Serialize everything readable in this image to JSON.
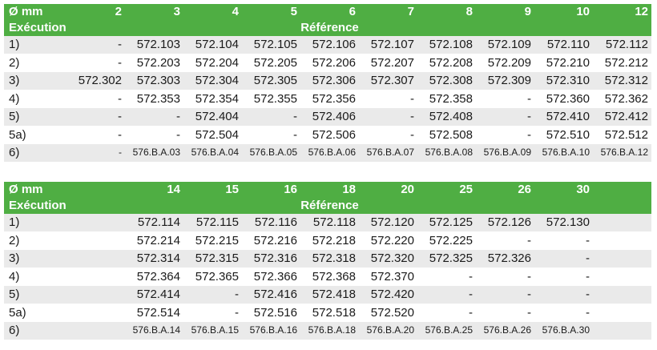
{
  "tables": [
    {
      "diam_label": "Ø mm",
      "exec_label": "Exécution",
      "ref_label": "Référence",
      "diameters": [
        "2",
        "3",
        "4",
        "5",
        "6",
        "7",
        "8",
        "9",
        "10",
        "12"
      ],
      "rows": [
        {
          "label": "1)",
          "cells": [
            "-",
            "572.103",
            "572.104",
            "572.105",
            "572.106",
            "572.107",
            "572.108",
            "572.109",
            "572.110",
            "572.112"
          ]
        },
        {
          "label": "2)",
          "cells": [
            "-",
            "572.203",
            "572.204",
            "572.205",
            "572.206",
            "572.207",
            "572.208",
            "572.209",
            "572.210",
            "572.212"
          ]
        },
        {
          "label": "3)",
          "cells": [
            "572.302",
            "572.303",
            "572.304",
            "572.305",
            "572.306",
            "572.307",
            "572.308",
            "572.309",
            "572.310",
            "572.312"
          ]
        },
        {
          "label": "4)",
          "cells": [
            "-",
            "572.353",
            "572.354",
            "572.355",
            "572.356",
            "-",
            "572.358",
            "-",
            "572.360",
            "572.362"
          ]
        },
        {
          "label": "5)",
          "cells": [
            "-",
            "-",
            "572.404",
            "-",
            "572.406",
            "-",
            "572.408",
            "-",
            "572.410",
            "572.412"
          ]
        },
        {
          "label": "5a)",
          "cells": [
            "-",
            "-",
            "572.504",
            "-",
            "572.506",
            "-",
            "572.508",
            "-",
            "572.510",
            "572.512"
          ]
        },
        {
          "label": "6)",
          "small": true,
          "cells": [
            "-",
            "576.B.A.03",
            "576.B.A.04",
            "576.B.A.05",
            "576.B.A.06",
            "576.B.A.07",
            "576.B.A.08",
            "576.B.A.09",
            "576.B.A.10",
            "576.B.A.12"
          ]
        }
      ]
    },
    {
      "diam_label": "Ø mm",
      "exec_label": "Exécution",
      "ref_label": "Référence",
      "diameters": [
        "",
        "14",
        "15",
        "16",
        "18",
        "20",
        "25",
        "26",
        "30",
        ""
      ],
      "rows": [
        {
          "label": "1)",
          "cells": [
            "",
            "572.114",
            "572.115",
            "572.116",
            "572.118",
            "572.120",
            "572.125",
            "572.126",
            "572.130",
            ""
          ]
        },
        {
          "label": "2)",
          "cells": [
            "",
            "572.214",
            "572.215",
            "572.216",
            "572.218",
            "572.220",
            "572.225",
            "-",
            "-",
            ""
          ]
        },
        {
          "label": "3)",
          "cells": [
            "",
            "572.314",
            "572.315",
            "572.316",
            "572.318",
            "572.320",
            "572.325",
            "572.326",
            "-",
            ""
          ]
        },
        {
          "label": "4)",
          "cells": [
            "",
            "572.364",
            "572.365",
            "572.366",
            "572.368",
            "572.370",
            "-",
            "-",
            "-",
            ""
          ]
        },
        {
          "label": "5)",
          "cells": [
            "",
            "572.414",
            "-",
            "572.416",
            "572.418",
            "572.420",
            "-",
            "-",
            "-",
            ""
          ]
        },
        {
          "label": "5a)",
          "cells": [
            "",
            "572.514",
            "-",
            "572.516",
            "572.518",
            "572.520",
            "-",
            "-",
            "-",
            ""
          ]
        },
        {
          "label": "6)",
          "small": true,
          "cells": [
            "",
            "576.B.A.14",
            "576.B.A.15",
            "576.B.A.16",
            "576.B.A.18",
            "576.B.A.20",
            "576.B.A.25",
            "576.B.A.26",
            "576.B.A.30",
            ""
          ]
        }
      ]
    }
  ]
}
